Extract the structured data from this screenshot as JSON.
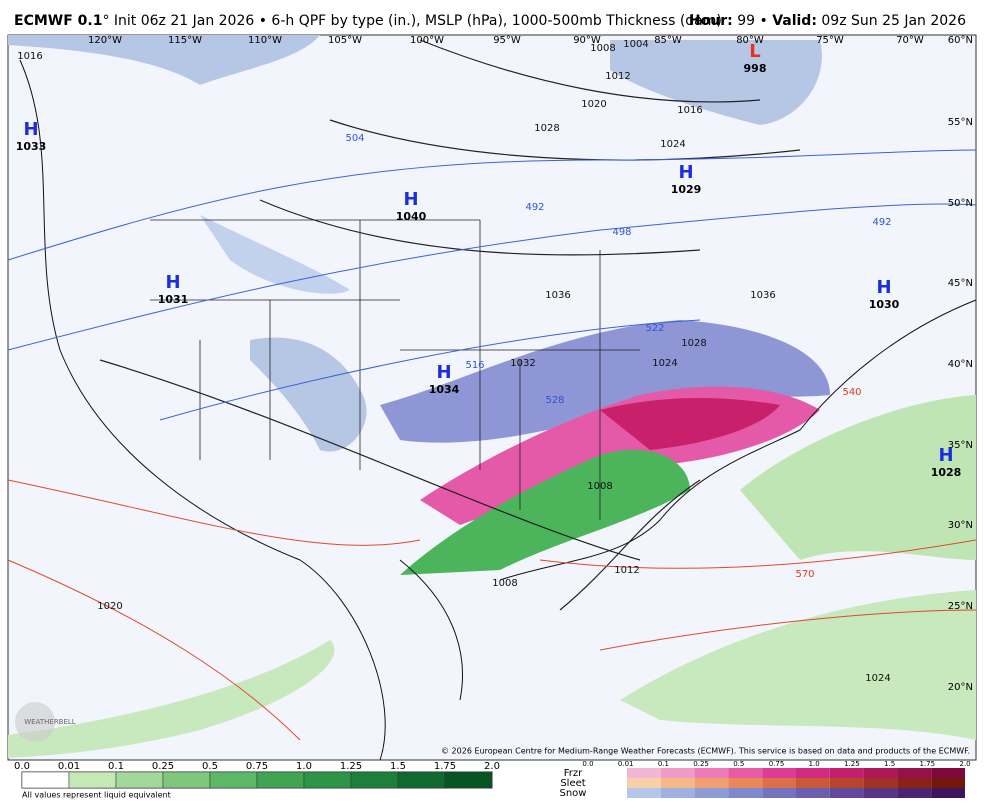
{
  "header": {
    "model": "ECMWF 0.1",
    "description": "° Init 06z 21 Jan 2026 • 6-h QPF by type (in.), MSLP (hPa), 1000-500mb Thickness (dam)",
    "hour_label": "Hour:",
    "hour": "99",
    "separator": "•",
    "valid_label": "Valid:",
    "valid": "09z Sun 25 Jan 2026"
  },
  "map": {
    "longitudes": [
      "120°W",
      "115°W",
      "110°W",
      "105°W",
      "100°W",
      "95°W",
      "90°W",
      "85°W",
      "80°W",
      "75°W",
      "70°W"
    ],
    "latitudes": [
      "60°N",
      "55°N",
      "50°N",
      "45°N",
      "40°N",
      "35°N",
      "30°N",
      "25°N",
      "20°N"
    ],
    "pressure_centers": [
      {
        "type": "H",
        "value": "1033"
      },
      {
        "type": "H",
        "value": "1040"
      },
      {
        "type": "H",
        "value": "1029"
      },
      {
        "type": "H",
        "value": "1031"
      },
      {
        "type": "H",
        "value": "1030"
      },
      {
        "type": "H",
        "value": "1034"
      },
      {
        "type": "H",
        "value": "1028"
      },
      {
        "type": "L",
        "value": "998"
      }
    ],
    "isobar_labels": [
      "1004",
      "1008",
      "1012",
      "1016",
      "1020",
      "1024",
      "1028",
      "1036",
      "1032",
      "1024",
      "1028",
      "1036",
      "1008",
      "1012",
      "1008",
      "1016",
      "1020",
      "1024"
    ],
    "thickness_labels": [
      "504",
      "492",
      "498",
      "492",
      "516",
      "522",
      "528",
      "540",
      "570"
    ],
    "copyright": "© 2026 European Centre for Medium-Range Weather Forecasts (ECMWF). This service is based on data and products of the ECMWF.",
    "watermark": "WEATHERBELL"
  },
  "legend": {
    "rain_ticks": [
      "0.0",
      "0.01",
      "0.1",
      "0.25",
      "0.5",
      "0.75",
      "1.0",
      "1.25",
      "1.5",
      "1.75",
      "2.0"
    ],
    "note": "All values represent liquid equivalent",
    "types": [
      "Frzr",
      "Sleet",
      "Snow"
    ],
    "mixed_ticks": [
      "0.0",
      "0.01",
      "0.1",
      "0.25",
      "0.5",
      "0.75",
      "1.0",
      "1.25",
      "1.5",
      "1.75",
      "2.0"
    ]
  }
}
